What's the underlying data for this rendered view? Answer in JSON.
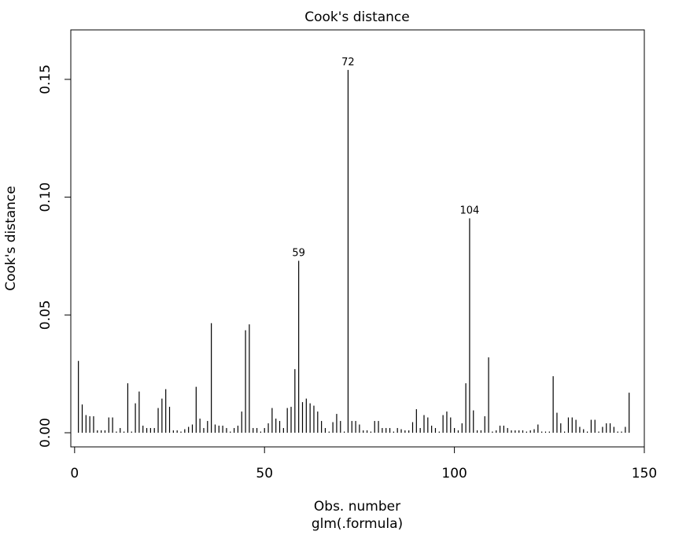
{
  "chart_data": {
    "type": "bar",
    "title": "Cook's distance",
    "xlabel": "Obs. number",
    "subtitle": "glm(.formula)",
    "ylabel": "Cook's distance",
    "xlim": [
      -1,
      150
    ],
    "ylim": [
      -0.006,
      0.171
    ],
    "x_ticks": [
      0,
      50,
      100,
      150
    ],
    "y_ticks": [
      0.0,
      0.05,
      0.1,
      0.15
    ],
    "x_tick_labels": [
      "0",
      "50",
      "100",
      "150"
    ],
    "y_tick_labels": [
      "0.00",
      "0.05",
      "0.10",
      "0.15"
    ],
    "grid": false,
    "legend": "none",
    "bar_color": "#000000",
    "labeled_points": [
      {
        "x": 59,
        "label": "59"
      },
      {
        "x": 72,
        "label": "72"
      },
      {
        "x": 104,
        "label": "104"
      }
    ],
    "x": [
      1,
      2,
      3,
      4,
      5,
      6,
      7,
      8,
      9,
      10,
      11,
      12,
      13,
      14,
      15,
      16,
      17,
      18,
      19,
      20,
      21,
      22,
      23,
      24,
      25,
      26,
      27,
      28,
      29,
      30,
      31,
      32,
      33,
      34,
      35,
      36,
      37,
      38,
      39,
      40,
      41,
      42,
      43,
      44,
      45,
      46,
      47,
      48,
      49,
      50,
      51,
      52,
      53,
      54,
      55,
      56,
      57,
      58,
      59,
      60,
      61,
      62,
      63,
      64,
      65,
      66,
      67,
      68,
      69,
      70,
      71,
      72,
      73,
      74,
      75,
      76,
      77,
      78,
      79,
      80,
      81,
      82,
      83,
      84,
      85,
      86,
      87,
      88,
      89,
      90,
      91,
      92,
      93,
      94,
      95,
      96,
      97,
      98,
      99,
      100,
      101,
      102,
      103,
      104,
      105,
      106,
      107,
      108,
      109,
      110,
      111,
      112,
      113,
      114,
      115,
      116,
      117,
      118,
      119,
      120,
      121,
      122,
      123,
      124,
      125,
      126,
      127,
      128,
      129,
      130,
      131,
      132,
      133,
      134,
      135,
      136,
      137,
      138,
      139,
      140,
      141,
      142,
      143,
      144,
      145,
      146
    ],
    "values": [
      0.0305,
      0.012,
      0.0075,
      0.007,
      0.007,
      0.001,
      0.001,
      0.001,
      0.0065,
      0.0065,
      0.0005,
      0.002,
      0.0005,
      0.021,
      0.0005,
      0.0125,
      0.0175,
      0.003,
      0.002,
      0.002,
      0.002,
      0.0105,
      0.0145,
      0.0185,
      0.011,
      0.001,
      0.001,
      0.0005,
      0.0015,
      0.0025,
      0.0035,
      0.0195,
      0.006,
      0.002,
      0.005,
      0.0465,
      0.0035,
      0.003,
      0.003,
      0.002,
      0.0005,
      0.002,
      0.003,
      0.009,
      0.0435,
      0.046,
      0.002,
      0.002,
      0.0005,
      0.002,
      0.004,
      0.0105,
      0.006,
      0.005,
      0.002,
      0.0105,
      0.011,
      0.027,
      0.073,
      0.013,
      0.0145,
      0.0125,
      0.0115,
      0.009,
      0.005,
      0.002,
      0.0005,
      0.0045,
      0.008,
      0.005,
      0.0005,
      0.154,
      0.005,
      0.005,
      0.0035,
      0.001,
      0.001,
      0.0005,
      0.005,
      0.005,
      0.002,
      0.002,
      0.002,
      0.0005,
      0.002,
      0.0015,
      0.001,
      0.001,
      0.0045,
      0.01,
      0.002,
      0.0075,
      0.0065,
      0.003,
      0.002,
      0.0005,
      0.0075,
      0.009,
      0.0065,
      0.002,
      0.001,
      0.004,
      0.021,
      0.091,
      0.0095,
      0.001,
      0.001,
      0.007,
      0.032,
      0.0005,
      0.001,
      0.003,
      0.003,
      0.002,
      0.001,
      0.001,
      0.001,
      0.001,
      0.0005,
      0.001,
      0.0015,
      0.0035,
      0.0005,
      0.0005,
      0.0005,
      0.024,
      0.0085,
      0.004,
      0.0005,
      0.0065,
      0.0065,
      0.0055,
      0.0025,
      0.0015,
      0.0005,
      0.0055,
      0.0055,
      0.0005,
      0.0025,
      0.004,
      0.004,
      0.0025,
      0.0005,
      0.0005,
      0.0025,
      0.017
    ]
  }
}
